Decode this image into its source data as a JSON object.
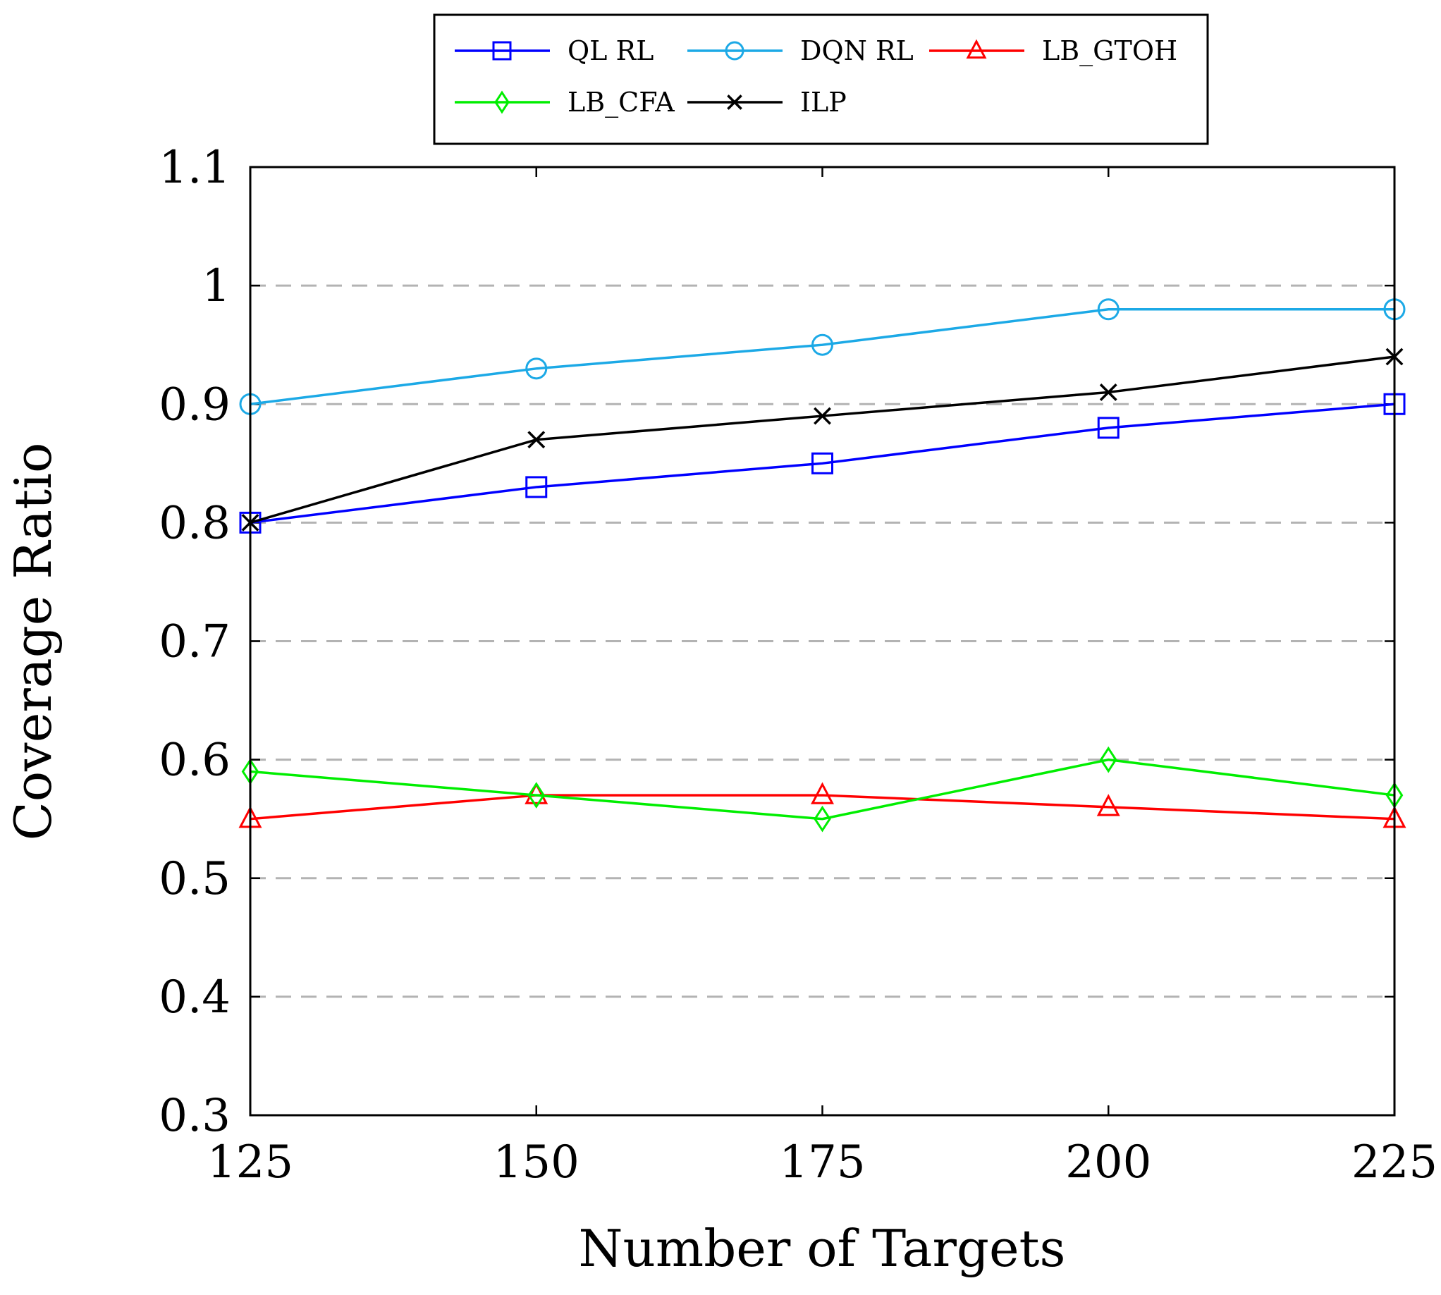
{
  "chart_data": {
    "type": "line",
    "title": "",
    "xlabel": "Number of Targets",
    "ylabel": "Coverage Ratio",
    "x": [
      125,
      150,
      175,
      200,
      225
    ],
    "xlim": [
      125,
      225
    ],
    "ylim": [
      0.3,
      1.1
    ],
    "x_ticks": [
      "125",
      "150",
      "175",
      "200",
      "225"
    ],
    "y_ticks": [
      "0.3",
      "0.4",
      "0.5",
      "0.6",
      "0.7",
      "0.8",
      "0.9",
      "1",
      "1.1"
    ],
    "y_tick_values": [
      0.3,
      0.4,
      0.5,
      0.6,
      0.7,
      0.8,
      0.9,
      1.0,
      1.1
    ],
    "grid": "horizontal dashed",
    "legend_position": "top, outside plot",
    "series": [
      {
        "name": "QL RL",
        "color": "#0000ff",
        "marker": "square",
        "values": [
          0.8,
          0.83,
          0.85,
          0.88,
          0.9
        ]
      },
      {
        "name": "DQN RL",
        "color": "#1ca9e6",
        "marker": "circle",
        "values": [
          0.9,
          0.93,
          0.95,
          0.98,
          0.98
        ]
      },
      {
        "name": "LB_GTOH",
        "color": "#ff0000",
        "marker": "triangle",
        "values": [
          0.55,
          0.57,
          0.57,
          0.56,
          0.55
        ]
      },
      {
        "name": "LB_CFA",
        "color": "#00ee00",
        "marker": "diamond",
        "values": [
          0.59,
          0.57,
          0.55,
          0.6,
          0.57
        ]
      },
      {
        "name": "ILP",
        "color": "#000000",
        "marker": "x",
        "values": [
          0.8,
          0.87,
          0.89,
          0.91,
          0.94
        ]
      }
    ]
  }
}
